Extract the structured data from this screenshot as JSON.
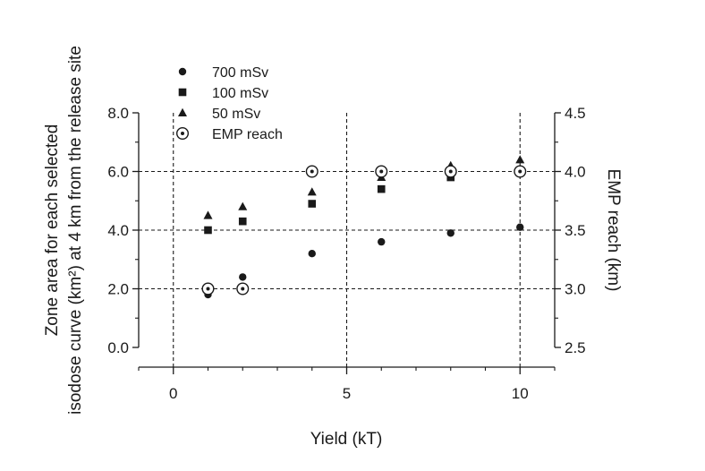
{
  "chart_data": {
    "type": "scatter",
    "title": "",
    "xlabel": "Yield (kT)",
    "ylabel_line1": "Zone area for each selected",
    "ylabel_line2": "isodose curve (km²) at 4 km from the release site",
    "y2label": "EMP reach (km)",
    "xlim": [
      -1,
      11
    ],
    "ylim": [
      0,
      8
    ],
    "y2lim": [
      2.5,
      4.5
    ],
    "x_ticks": [
      0,
      5,
      10
    ],
    "x_tick_labels": [
      "0",
      "5",
      "10"
    ],
    "y_ticks": [
      0,
      2,
      4,
      6,
      8
    ],
    "y_tick_labels": [
      "0.0",
      "2.0",
      "4.0",
      "6.0",
      "8.0"
    ],
    "y2_ticks": [
      2.5,
      3.0,
      3.5,
      4.0,
      4.5
    ],
    "y2_tick_labels": [
      "2.5",
      "3.0",
      "3.5",
      "4.0",
      "4.5"
    ],
    "grid": "dashed",
    "legend_position": "top-left",
    "series": [
      {
        "name": "700 mSv",
        "marker": "circle",
        "axis": "left",
        "x": [
          1,
          2,
          4,
          6,
          8,
          10
        ],
        "y": [
          1.8,
          2.4,
          3.2,
          3.6,
          3.9,
          4.1
        ]
      },
      {
        "name": "100 mSv",
        "marker": "square",
        "axis": "left",
        "x": [
          1,
          2,
          4,
          6,
          8,
          10
        ],
        "y": [
          4.0,
          4.3,
          4.9,
          5.4,
          5.8,
          6.0
        ]
      },
      {
        "name": "50 mSv",
        "marker": "triangle",
        "axis": "left",
        "x": [
          1,
          2,
          4,
          6,
          8,
          10
        ],
        "y": [
          4.5,
          4.8,
          5.3,
          5.8,
          6.2,
          6.4
        ]
      },
      {
        "name": "EMP reach",
        "marker": "dotted-circle",
        "axis": "right",
        "x": [
          1,
          2,
          4,
          6,
          8,
          10
        ],
        "y": [
          3.0,
          3.0,
          4.0,
          4.0,
          4.0,
          4.0
        ]
      }
    ]
  }
}
